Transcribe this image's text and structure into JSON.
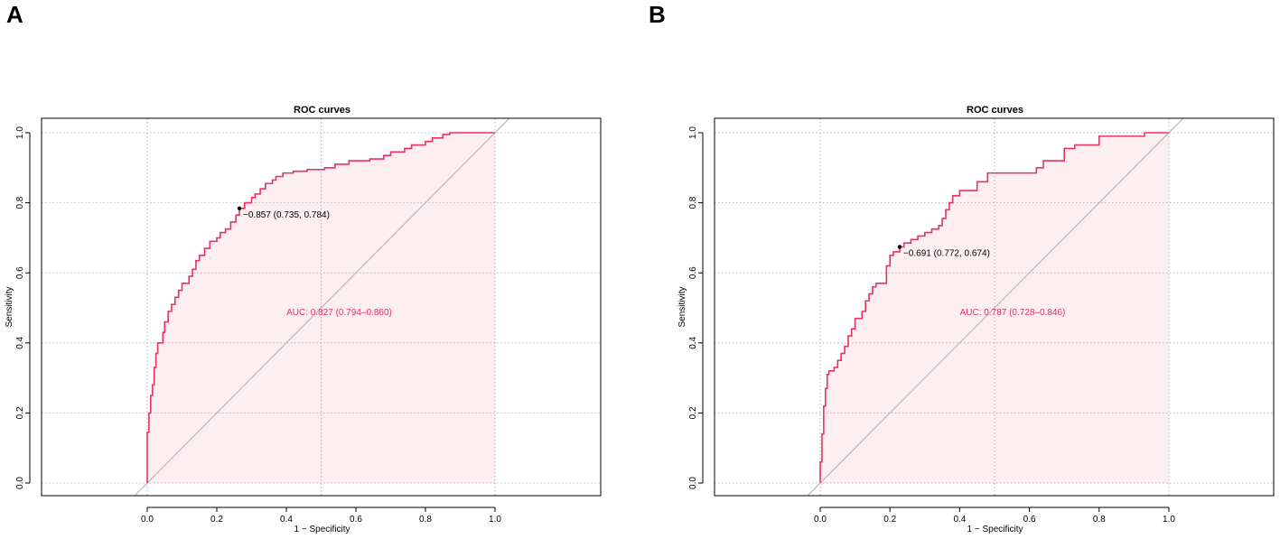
{
  "panels": [
    {
      "letter": "A"
    },
    {
      "letter": "B"
    }
  ],
  "chart_data": [
    {
      "type": "line",
      "title": "ROC curves",
      "xlabel": "1 − Specificity",
      "ylabel": "Sensitivity",
      "xlim": [
        0,
        1
      ],
      "ylim": [
        0,
        1
      ],
      "x_ticks": [
        "0.0",
        "0.2",
        "0.4",
        "0.6",
        "0.8",
        "1.0"
      ],
      "y_ticks": [
        "0.0",
        "0.2",
        "0.4",
        "0.6",
        "0.8",
        "1.0"
      ],
      "grid": true,
      "diagonal_reference": true,
      "curve_color": "#e8325f",
      "fill_color": "#fdeef1",
      "auc_label": "AUC: 0.827 (0.794–0.860)",
      "threshold": {
        "fpr": 0.265,
        "tpr": 0.784,
        "label": "−0.857 (0.735, 0.784)"
      },
      "series": [
        {
          "points": [
            [
              0,
              0
            ],
            [
              0,
              0.145
            ],
            [
              0.005,
              0.145
            ],
            [
              0.005,
              0.2
            ],
            [
              0.01,
              0.2
            ],
            [
              0.01,
              0.25
            ],
            [
              0.015,
              0.25
            ],
            [
              0.015,
              0.28
            ],
            [
              0.02,
              0.28
            ],
            [
              0.02,
              0.33
            ],
            [
              0.025,
              0.33
            ],
            [
              0.025,
              0.37
            ],
            [
              0.03,
              0.37
            ],
            [
              0.03,
              0.4
            ],
            [
              0.045,
              0.4
            ],
            [
              0.045,
              0.43
            ],
            [
              0.05,
              0.43
            ],
            [
              0.05,
              0.46
            ],
            [
              0.06,
              0.46
            ],
            [
              0.06,
              0.49
            ],
            [
              0.07,
              0.49
            ],
            [
              0.07,
              0.51
            ],
            [
              0.08,
              0.51
            ],
            [
              0.08,
              0.53
            ],
            [
              0.09,
              0.53
            ],
            [
              0.09,
              0.55
            ],
            [
              0.1,
              0.55
            ],
            [
              0.1,
              0.57
            ],
            [
              0.12,
              0.57
            ],
            [
              0.12,
              0.59
            ],
            [
              0.13,
              0.59
            ],
            [
              0.13,
              0.61
            ],
            [
              0.14,
              0.61
            ],
            [
              0.14,
              0.635
            ],
            [
              0.15,
              0.635
            ],
            [
              0.15,
              0.65
            ],
            [
              0.165,
              0.65
            ],
            [
              0.165,
              0.67
            ],
            [
              0.18,
              0.67
            ],
            [
              0.18,
              0.69
            ],
            [
              0.2,
              0.69
            ],
            [
              0.2,
              0.7
            ],
            [
              0.21,
              0.7
            ],
            [
              0.21,
              0.715
            ],
            [
              0.225,
              0.715
            ],
            [
              0.225,
              0.725
            ],
            [
              0.24,
              0.725
            ],
            [
              0.24,
              0.745
            ],
            [
              0.255,
              0.745
            ],
            [
              0.255,
              0.765
            ],
            [
              0.265,
              0.765
            ],
            [
              0.265,
              0.784
            ],
            [
              0.28,
              0.784
            ],
            [
              0.28,
              0.8
            ],
            [
              0.3,
              0.8
            ],
            [
              0.3,
              0.815
            ],
            [
              0.31,
              0.815
            ],
            [
              0.31,
              0.825
            ],
            [
              0.325,
              0.825
            ],
            [
              0.325,
              0.84
            ],
            [
              0.34,
              0.84
            ],
            [
              0.34,
              0.855
            ],
            [
              0.36,
              0.855
            ],
            [
              0.36,
              0.865
            ],
            [
              0.37,
              0.865
            ],
            [
              0.37,
              0.875
            ],
            [
              0.39,
              0.875
            ],
            [
              0.39,
              0.885
            ],
            [
              0.42,
              0.885
            ],
            [
              0.42,
              0.89
            ],
            [
              0.46,
              0.89
            ],
            [
              0.46,
              0.895
            ],
            [
              0.51,
              0.895
            ],
            [
              0.51,
              0.9
            ],
            [
              0.54,
              0.9
            ],
            [
              0.54,
              0.91
            ],
            [
              0.58,
              0.91
            ],
            [
              0.58,
              0.92
            ],
            [
              0.64,
              0.92
            ],
            [
              0.64,
              0.925
            ],
            [
              0.68,
              0.925
            ],
            [
              0.68,
              0.935
            ],
            [
              0.7,
              0.935
            ],
            [
              0.7,
              0.945
            ],
            [
              0.74,
              0.945
            ],
            [
              0.74,
              0.955
            ],
            [
              0.76,
              0.955
            ],
            [
              0.76,
              0.965
            ],
            [
              0.8,
              0.965
            ],
            [
              0.8,
              0.975
            ],
            [
              0.82,
              0.975
            ],
            [
              0.82,
              0.985
            ],
            [
              0.85,
              0.985
            ],
            [
              0.85,
              0.995
            ],
            [
              0.87,
              0.995
            ],
            [
              0.87,
              1.0
            ],
            [
              1.0,
              1.0
            ]
          ]
        }
      ]
    },
    {
      "type": "line",
      "title": "ROC curves",
      "xlabel": "1 − Specificity",
      "ylabel": "Sensitivity",
      "xlim": [
        0,
        1
      ],
      "ylim": [
        0,
        1
      ],
      "x_ticks": [
        "0.0",
        "0.2",
        "0.4",
        "0.6",
        "0.8",
        "1.0"
      ],
      "y_ticks": [
        "0.0",
        "0.2",
        "0.4",
        "0.6",
        "0.8",
        "1.0"
      ],
      "grid": true,
      "diagonal_reference": true,
      "curve_color": "#e8325f",
      "fill_color": "#fdeef1",
      "auc_label": "AUC: 0.787 (0.728–0.846)",
      "threshold": {
        "fpr": 0.228,
        "tpr": 0.674,
        "label": "−0.691 (0.772, 0.674)"
      },
      "series": [
        {
          "points": [
            [
              0,
              0
            ],
            [
              0,
              0.06
            ],
            [
              0.005,
              0.06
            ],
            [
              0.005,
              0.14
            ],
            [
              0.01,
              0.14
            ],
            [
              0.01,
              0.22
            ],
            [
              0.015,
              0.22
            ],
            [
              0.015,
              0.27
            ],
            [
              0.02,
              0.27
            ],
            [
              0.02,
              0.31
            ],
            [
              0.025,
              0.31
            ],
            [
              0.025,
              0.32
            ],
            [
              0.04,
              0.32
            ],
            [
              0.04,
              0.33
            ],
            [
              0.05,
              0.33
            ],
            [
              0.05,
              0.35
            ],
            [
              0.06,
              0.35
            ],
            [
              0.06,
              0.37
            ],
            [
              0.07,
              0.37
            ],
            [
              0.07,
              0.39
            ],
            [
              0.08,
              0.39
            ],
            [
              0.08,
              0.42
            ],
            [
              0.09,
              0.42
            ],
            [
              0.09,
              0.44
            ],
            [
              0.1,
              0.44
            ],
            [
              0.1,
              0.47
            ],
            [
              0.12,
              0.47
            ],
            [
              0.12,
              0.49
            ],
            [
              0.13,
              0.49
            ],
            [
              0.13,
              0.52
            ],
            [
              0.14,
              0.52
            ],
            [
              0.14,
              0.54
            ],
            [
              0.15,
              0.54
            ],
            [
              0.15,
              0.56
            ],
            [
              0.16,
              0.56
            ],
            [
              0.16,
              0.57
            ],
            [
              0.19,
              0.57
            ],
            [
              0.19,
              0.62
            ],
            [
              0.2,
              0.62
            ],
            [
              0.2,
              0.65
            ],
            [
              0.21,
              0.65
            ],
            [
              0.21,
              0.66
            ],
            [
              0.228,
              0.66
            ],
            [
              0.228,
              0.674
            ],
            [
              0.24,
              0.674
            ],
            [
              0.24,
              0.685
            ],
            [
              0.26,
              0.685
            ],
            [
              0.26,
              0.695
            ],
            [
              0.28,
              0.695
            ],
            [
              0.28,
              0.705
            ],
            [
              0.3,
              0.705
            ],
            [
              0.3,
              0.715
            ],
            [
              0.32,
              0.715
            ],
            [
              0.32,
              0.725
            ],
            [
              0.34,
              0.725
            ],
            [
              0.34,
              0.735
            ],
            [
              0.35,
              0.735
            ],
            [
              0.35,
              0.755
            ],
            [
              0.36,
              0.755
            ],
            [
              0.36,
              0.78
            ],
            [
              0.37,
              0.78
            ],
            [
              0.37,
              0.8
            ],
            [
              0.38,
              0.8
            ],
            [
              0.38,
              0.82
            ],
            [
              0.4,
              0.82
            ],
            [
              0.4,
              0.835
            ],
            [
              0.45,
              0.835
            ],
            [
              0.45,
              0.86
            ],
            [
              0.48,
              0.86
            ],
            [
              0.48,
              0.885
            ],
            [
              0.62,
              0.885
            ],
            [
              0.62,
              0.9
            ],
            [
              0.64,
              0.9
            ],
            [
              0.64,
              0.92
            ],
            [
              0.7,
              0.92
            ],
            [
              0.7,
              0.955
            ],
            [
              0.73,
              0.955
            ],
            [
              0.73,
              0.965
            ],
            [
              0.8,
              0.965
            ],
            [
              0.8,
              0.99
            ],
            [
              0.93,
              0.99
            ],
            [
              0.93,
              1.0
            ],
            [
              1.0,
              1.0
            ]
          ]
        }
      ]
    }
  ]
}
